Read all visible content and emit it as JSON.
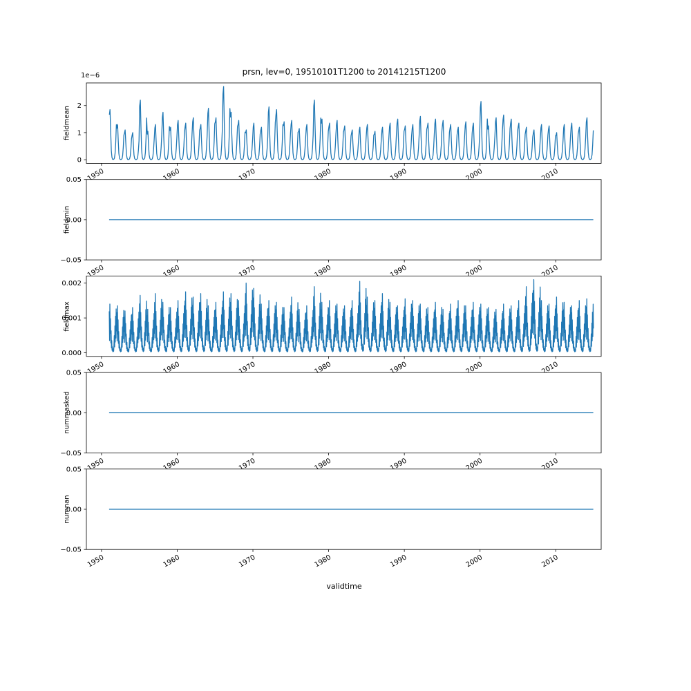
{
  "figure": {
    "title": "prsn, lev=0, 19510101T1200 to 20141215T1200",
    "xlabel": "validtime",
    "line_color": "#1f77b4",
    "background": "#ffffff",
    "xlim": [
      1948,
      2016
    ],
    "xticks": [
      1950,
      1960,
      1970,
      1980,
      1990,
      2000,
      2010
    ],
    "xtick_labels": [
      "1950",
      "1960",
      "1970",
      "1980",
      "1990",
      "2000",
      "2010"
    ]
  },
  "chart_data": [
    {
      "type": "line",
      "name": "fieldmean",
      "ylabel": "fieldmean",
      "offset_text": "1e−6",
      "ylim": [
        -0.135,
        2.835
      ],
      "yticks": [
        0,
        1,
        2
      ],
      "ytick_labels": [
        "0",
        "1",
        "2"
      ],
      "series": {
        "kind": "seasonal",
        "start_year": 1951,
        "profile": [
          0.9,
          1.0,
          0.55,
          0.18,
          0.05,
          0.01,
          0.005,
          0.01,
          0.03,
          0.12,
          0.35,
          0.7
        ],
        "annual_peaks": [
          1.85,
          1.3,
          1.1,
          1.0,
          2.2,
          1.05,
          1.3,
          1.75,
          1.2,
          1.45,
          1.35,
          1.55,
          1.3,
          1.9,
          1.55,
          2.7,
          1.75,
          1.45,
          1.1,
          1.35,
          1.2,
          1.95,
          1.85,
          1.4,
          1.45,
          1.15,
          1.3,
          2.2,
          1.5,
          1.35,
          1.45,
          1.25,
          1.1,
          1.2,
          1.3,
          1.05,
          1.2,
          1.35,
          1.5,
          1.25,
          1.3,
          1.6,
          1.35,
          1.5,
          1.45,
          1.3,
          1.2,
          1.4,
          1.35,
          2.15,
          1.25,
          1.55,
          1.65,
          1.5,
          1.35,
          1.2,
          1.1,
          1.3,
          1.25,
          1.0,
          1.3,
          1.35,
          1.2,
          1.55
        ]
      }
    },
    {
      "type": "line",
      "name": "fieldmin",
      "ylabel": "fieldmin",
      "ylim": [
        -0.05,
        0.05
      ],
      "yticks": [
        -0.05,
        0,
        0.05
      ],
      "ytick_labels": [
        "−0.05",
        "0.00",
        "0.05"
      ],
      "series": {
        "kind": "constant",
        "value": 0.0,
        "x_start": 1951.0,
        "x_end": 2014.96
      }
    },
    {
      "type": "line",
      "name": "fieldmax",
      "ylabel": "fieldmax",
      "ylim": [
        -0.000105,
        0.002205
      ],
      "yticks": [
        0,
        0.001,
        0.002
      ],
      "ytick_labels": [
        "0.000",
        "0.001",
        "0.002"
      ],
      "series": {
        "kind": "seasonal",
        "start_year": 1951,
        "profile": [
          0.85,
          0.25,
          1.0,
          0.4,
          0.7,
          0.2,
          0.45,
          0.1,
          0.25,
          0.05,
          0.12,
          0.03,
          0.02,
          0.08,
          0.03,
          0.15,
          0.35,
          0.12,
          0.55,
          0.22,
          0.75,
          0.3,
          0.9,
          0.45
        ],
        "annual_peaks": [
          0.0014,
          0.00135,
          0.0012,
          0.0013,
          0.00165,
          0.00125,
          0.0017,
          0.00145,
          0.0013,
          0.0015,
          0.00175,
          0.0016,
          0.0017,
          0.00135,
          0.00145,
          0.00175,
          0.0017,
          0.0015,
          0.002,
          0.00185,
          0.0014,
          0.0015,
          0.00145,
          0.0013,
          0.0016,
          0.00125,
          0.00135,
          0.0019,
          0.00145,
          0.0015,
          0.0014,
          0.00135,
          0.0015,
          0.00205,
          0.0016,
          0.0015,
          0.0017,
          0.00145,
          0.00135,
          0.00155,
          0.0015,
          0.0014,
          0.0013,
          0.00145,
          0.00125,
          0.0014,
          0.0015,
          0.00135,
          0.00145,
          0.0014,
          0.0013,
          0.00125,
          0.0014,
          0.00135,
          0.0015,
          0.0019,
          0.0021,
          0.0015,
          0.0014,
          0.0016,
          0.00145,
          0.00135,
          0.0015,
          0.00155
        ]
      }
    },
    {
      "type": "line",
      "name": "nummasked",
      "ylabel": "nummasked",
      "ylim": [
        -0.05,
        0.05
      ],
      "yticks": [
        -0.05,
        0,
        0.05
      ],
      "ytick_labels": [
        "−0.05",
        "0.00",
        "0.05"
      ],
      "series": {
        "kind": "constant",
        "value": 0.0,
        "x_start": 1951.0,
        "x_end": 2014.96
      }
    },
    {
      "type": "line",
      "name": "numnan",
      "ylabel": "numnan",
      "ylim": [
        -0.05,
        0.05
      ],
      "yticks": [
        -0.05,
        0,
        0.05
      ],
      "ytick_labels": [
        "−0.05",
        "0.00",
        "0.05"
      ],
      "series": {
        "kind": "constant",
        "value": 0.0,
        "x_start": 1951.0,
        "x_end": 2014.96
      }
    }
  ]
}
